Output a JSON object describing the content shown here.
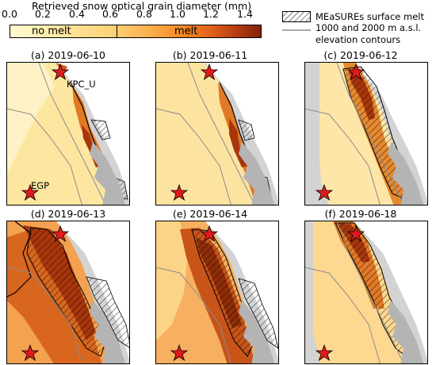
{
  "colorbar": {
    "title": "Retrieved snow optical grain diameter (mm)",
    "ticks": [
      "0.0",
      "0.2",
      "0.4",
      "0.6",
      "0.8",
      "1.0",
      "1.2",
      "1.4"
    ],
    "tick_values": [
      0.0,
      0.2,
      0.4,
      0.6,
      0.8,
      1.0,
      1.2,
      1.4
    ],
    "range": [
      0.0,
      1.5
    ],
    "label_left": "no melt",
    "label_right": "melt",
    "threshold": 0.64
  },
  "legend": {
    "melt_label": "MEaSUREs surface melt",
    "contour_label_line1": "1000 and 2000 m a.s.l.",
    "contour_label_line2": "elevation contours"
  },
  "sites": {
    "kpc": "KPC_U",
    "egp": "EGP"
  },
  "panels": [
    {
      "label": "(a) 2019-06-10"
    },
    {
      "label": "(b) 2019-06-11"
    },
    {
      "label": "(c) 2019-06-12"
    },
    {
      "label": "(d) 2019-06-13"
    },
    {
      "label": "(e) 2019-06-14"
    },
    {
      "label": "(f) 2019-06-18"
    }
  ],
  "colors": {
    "land": "#d3d3d3",
    "no_melt": "#fde28a",
    "melt": "#d2581a",
    "melt_dark": "#8a2a08",
    "contour": "#8c8c8c",
    "star": "#e31a1c"
  }
}
